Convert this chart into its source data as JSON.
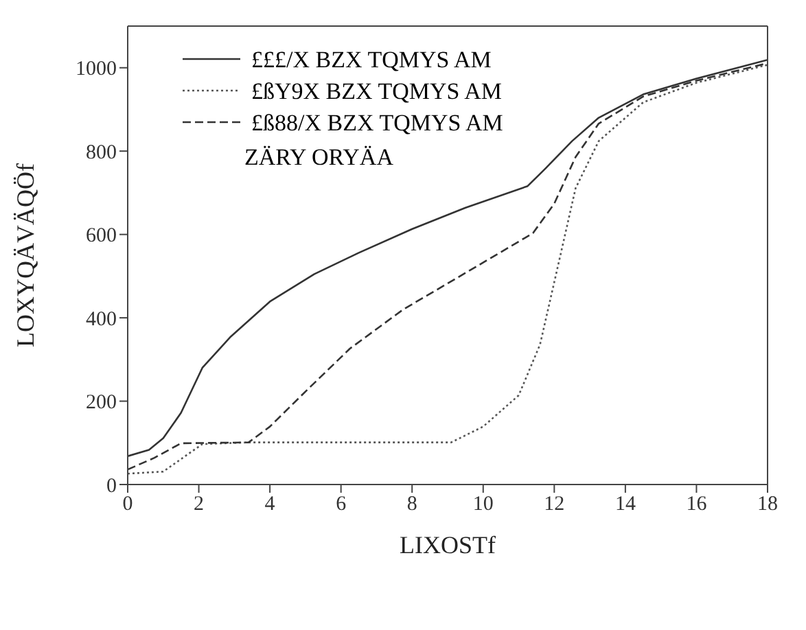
{
  "chart_data": {
    "type": "line",
    "xlabel": "LIXOSTf",
    "ylabel": "LOXYQÄVÄQÖf",
    "legend": "top left",
    "marker": "none",
    "annotations": [
      "ZÄRY ORYÄA"
    ],
    "xlim": [
      0,
      18
    ],
    "xticks": [
      0,
      2,
      4,
      6,
      8,
      10,
      12,
      14,
      16,
      18
    ],
    "ylim": [
      0,
      1100
    ],
    "yticks": [
      0,
      200,
      400,
      600,
      800,
      1000
    ],
    "series": [
      {
        "name": "£££/X BZX TQMYS AM",
        "color": "#333333",
        "line_style": "solid",
        "x": [
          0,
          0.6,
          1,
          1.5,
          2.1,
          2.9,
          4,
          5.25,
          6.5,
          8,
          9.5,
          11.25,
          11.75,
          12.5,
          13.25,
          14.5,
          16,
          18
        ],
        "values": [
          68,
          83,
          111,
          172,
          280,
          355,
          439,
          505,
          556,
          613,
          664,
          716,
          758,
          824,
          880,
          936,
          974,
          1019
        ]
      },
      {
        "name": "£ßY9X BZX TQMYS AM",
        "color": "#555555",
        "line_style": "dotted",
        "x": [
          0,
          1,
          2.1,
          3.4,
          9.1,
          10,
          11,
          11.6,
          12.1,
          12.6,
          13.25,
          14.5,
          16,
          18
        ],
        "values": [
          26,
          31,
          97,
          101,
          101,
          139,
          214,
          336,
          523,
          711,
          824,
          917,
          964,
          1007
        ]
      },
      {
        "name": "£ß88/X BZX TQMYS AM",
        "color": "#333333",
        "line_style": "dashed",
        "x": [
          0,
          0.75,
          1.5,
          3.4,
          4,
          5,
          6.25,
          7.75,
          9.25,
          11.4,
          12,
          12.6,
          13.25,
          14.5,
          16,
          18
        ],
        "values": [
          36,
          64,
          99,
          101,
          139,
          223,
          326,
          420,
          495,
          603,
          674,
          786,
          866,
          931,
          969,
          1011
        ]
      }
    ]
  }
}
